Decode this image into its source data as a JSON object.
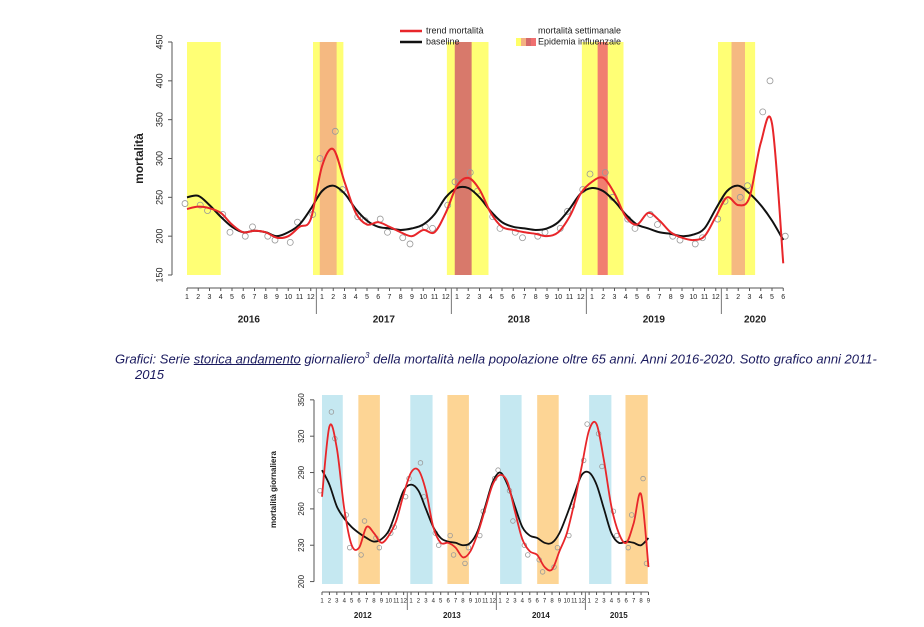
{
  "caption": [
    "Grafici: Serie ",
    "storica  andamento",
    " giornaliero",
    "3",
    " della mortalità nella popolazione oltre 65 anni. Anni 2016-2020. Sotto grafico anni 2011-2015"
  ],
  "chart_data": [
    {
      "type": "line",
      "y_label": "mortalità",
      "ylim": [
        150,
        450
      ],
      "yticks": [
        150,
        200,
        250,
        300,
        350,
        400,
        450
      ],
      "categories": [
        "1",
        "2",
        "3",
        "4",
        "5",
        "6",
        "7",
        "8",
        "9",
        "10",
        "11",
        "12",
        "1",
        "2",
        "3",
        "4",
        "5",
        "6",
        "7",
        "8",
        "9",
        "10",
        "11",
        "12",
        "1",
        "2",
        "3",
        "4",
        "5",
        "6",
        "7",
        "8",
        "9",
        "10",
        "11",
        "12",
        "1",
        "2",
        "3",
        "4",
        "5",
        "6",
        "7",
        "8",
        "9",
        "10",
        "11",
        "12",
        "1",
        "2",
        "3",
        "4",
        "5",
        "6"
      ],
      "years": [
        "2016",
        "2017",
        "2018",
        "2019",
        "2020"
      ],
      "bands": [
        {
          "start": 0,
          "end": 3,
          "color": "#ffff66"
        },
        {
          "start": 11.2,
          "end": 13.9,
          "color": "#ffff66"
        },
        {
          "start": 23.1,
          "end": 26.8,
          "color": "#ffff66"
        },
        {
          "start": 35.1,
          "end": 38.8,
          "color": "#ffff66"
        },
        {
          "start": 47.2,
          "end": 50.5,
          "color": "#ffff66"
        },
        {
          "start": 11.8,
          "end": 13.3,
          "color": "#f4b183"
        },
        {
          "start": 23.8,
          "end": 25.3,
          "color": "#d46a6a"
        },
        {
          "start": 36.5,
          "end": 37.4,
          "color": "#f07070"
        },
        {
          "start": 48.4,
          "end": 49.6,
          "color": "#f4b183"
        }
      ],
      "series": [
        {
          "name": "trend mortalità",
          "color": "#e8262a",
          "values": [
            235,
            238,
            236,
            230,
            215,
            205,
            207,
            205,
            198,
            200,
            212,
            222,
            290,
            312,
            270,
            230,
            215,
            218,
            212,
            205,
            200,
            208,
            205,
            230,
            265,
            275,
            260,
            230,
            212,
            208,
            205,
            203,
            200,
            205,
            225,
            255,
            270,
            275,
            255,
            225,
            215,
            230,
            220,
            205,
            198,
            195,
            200,
            225,
            250,
            240,
            250,
            320,
            345,
            165
          ]
        },
        {
          "name": "baseline",
          "color": "#111111",
          "values": [
            250,
            252,
            240,
            225,
            212,
            205,
            207,
            205,
            200,
            205,
            215,
            235,
            258,
            265,
            255,
            235,
            220,
            212,
            210,
            208,
            210,
            215,
            228,
            250,
            262,
            262,
            250,
            232,
            218,
            212,
            210,
            208,
            210,
            218,
            235,
            255,
            262,
            258,
            245,
            228,
            215,
            210,
            205,
            203,
            200,
            202,
            210,
            235,
            258,
            265,
            255,
            240,
            220,
            195
          ]
        }
      ],
      "points": {
        "name": "mortalità settimanale",
        "values": [
          242,
          240,
          233,
          228,
          205,
          200,
          212,
          200,
          195,
          192,
          218,
          228,
          300,
          335,
          260,
          225,
          220,
          222,
          205,
          198,
          190,
          212,
          210,
          240,
          270,
          282,
          258,
          225,
          210,
          205,
          198,
          200,
          205,
          210,
          232,
          260,
          280,
          282,
          250,
          222,
          210,
          228,
          215,
          200,
          195,
          190,
          198,
          222,
          245,
          250,
          265,
          360,
          400,
          200
        ]
      },
      "band_legend": "Epidemia influenzale"
    },
    {
      "type": "line",
      "y_label": "mortalità giornaliera",
      "ylim": [
        198,
        354
      ],
      "yticks": [
        200,
        230,
        260,
        290,
        320,
        350
      ],
      "categories": [
        "1",
        "2",
        "3",
        "4",
        "5",
        "6",
        "7",
        "8",
        "9",
        "10",
        "11",
        "12",
        "1",
        "2",
        "3",
        "4",
        "5",
        "6",
        "7",
        "8",
        "9",
        "10",
        "11",
        "12",
        "1",
        "2",
        "3",
        "4",
        "5",
        "6",
        "7",
        "8",
        "9",
        "10",
        "11",
        "12",
        "1",
        "2",
        "3",
        "4",
        "5",
        "6",
        "7",
        "8",
        "9"
      ],
      "years": [
        "2012",
        "2013",
        "2014",
        "2015"
      ],
      "bands": [
        {
          "start": 0,
          "end": 2.8,
          "color": "#bfe6ef"
        },
        {
          "start": 11.9,
          "end": 14.9,
          "color": "#bfe6ef"
        },
        {
          "start": 24,
          "end": 26.9,
          "color": "#bfe6ef"
        },
        {
          "start": 36,
          "end": 39,
          "color": "#bfe6ef"
        },
        {
          "start": 4.9,
          "end": 7.8,
          "color": "#fdd08a"
        },
        {
          "start": 16.9,
          "end": 19.8,
          "color": "#fdd08a"
        },
        {
          "start": 29,
          "end": 31.9,
          "color": "#fdd08a"
        },
        {
          "start": 40.9,
          "end": 43.9,
          "color": "#fdd08a"
        }
      ],
      "series": [
        {
          "color": "#e8262a",
          "values": [
            270,
            328,
            310,
            260,
            230,
            228,
            245,
            240,
            232,
            238,
            250,
            272,
            290,
            292,
            275,
            245,
            232,
            232,
            228,
            220,
            225,
            240,
            260,
            280,
            288,
            282,
            258,
            235,
            225,
            222,
            212,
            210,
            225,
            240,
            265,
            295,
            325,
            330,
            300,
            262,
            240,
            232,
            248,
            272,
            212
          ]
        },
        {
          "color": "#111111",
          "values": [
            292,
            280,
            262,
            252,
            245,
            240,
            236,
            233,
            235,
            242,
            258,
            275,
            280,
            275,
            260,
            245,
            236,
            233,
            232,
            230,
            232,
            242,
            262,
            282,
            290,
            280,
            262,
            245,
            238,
            236,
            232,
            232,
            240,
            255,
            272,
            288,
            290,
            280,
            260,
            240,
            232,
            233,
            232,
            230,
            236
          ]
        }
      ],
      "points": {
        "values": [
          275,
          340,
          318,
          255,
          228,
          222,
          250,
          236,
          228,
          240,
          245,
          270,
          285,
          298,
          270,
          240,
          230,
          238,
          222,
          215,
          228,
          238,
          258,
          285,
          292,
          275,
          250,
          230,
          222,
          218,
          208,
          212,
          228,
          238,
          262,
          300,
          330,
          322,
          295,
          258,
          238,
          228,
          255,
          285,
          215
        ]
      }
    }
  ]
}
